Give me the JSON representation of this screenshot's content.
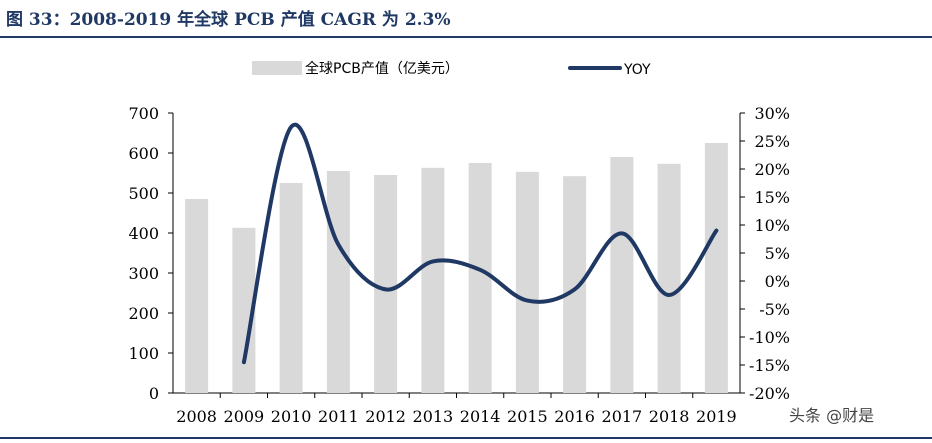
{
  "header": {
    "title": "图 33：2008-2019 年全球 PCB 产值 CAGR 为 2.3%"
  },
  "watermark": "头条 @财是",
  "colors": {
    "bar": "#d9d9d9",
    "line": "#1f3864",
    "accent": "#1f3864"
  },
  "chart_data": {
    "type": "bar+line",
    "title": "2008-2019 年全球 PCB 产值 CAGR 为 2.3%",
    "categories": [
      "2008",
      "2009",
      "2010",
      "2011",
      "2012",
      "2013",
      "2014",
      "2015",
      "2016",
      "2017",
      "2018",
      "2019"
    ],
    "series": [
      {
        "name": "全球PCB产值（亿美元）",
        "type": "bar",
        "axis": "left",
        "values": [
          485,
          413,
          525,
          555,
          545,
          563,
          575,
          553,
          542,
          590,
          573,
          625
        ]
      },
      {
        "name": "YOY",
        "type": "line",
        "axis": "right",
        "values": [
          null,
          -14.5,
          27.5,
          6.5,
          -1.5,
          3.5,
          2.0,
          -3.5,
          -1.5,
          8.5,
          -2.5,
          9.0
        ]
      }
    ],
    "left_axis": {
      "ylim": [
        0,
        700
      ],
      "ticks": [
        "0",
        "100",
        "200",
        "300",
        "400",
        "500",
        "600",
        "700"
      ]
    },
    "right_axis": {
      "ylim": [
        -20,
        30
      ],
      "ticks": [
        "-20%",
        "-15%",
        "-10%",
        "-5%",
        "0%",
        "5%",
        "10%",
        "15%",
        "20%",
        "25%",
        "30%"
      ]
    },
    "legend": {
      "placement": "top",
      "bar_label": "全球PCB产值（亿美元）",
      "line_label": "YOY"
    }
  }
}
